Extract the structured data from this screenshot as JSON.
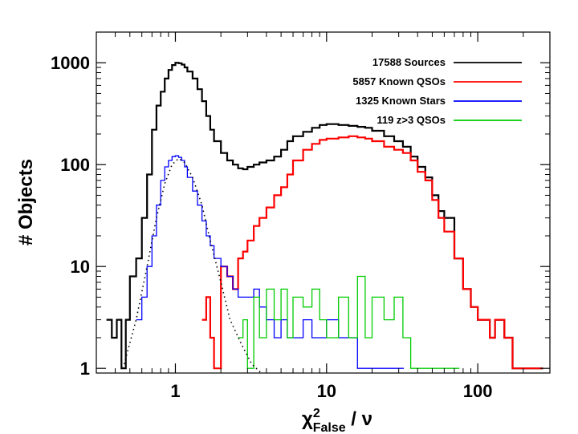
{
  "chart_data": {
    "type": "line",
    "title": "",
    "xlabel": {
      "main": "χ",
      "sup": "2",
      "sub": "False",
      "tail": " / ν"
    },
    "ylabel": "# Objects",
    "xscale": "log",
    "yscale": "log",
    "xlim": [
      0.3,
      300
    ],
    "ylim": [
      0.9,
      2000
    ],
    "xticks": [
      1,
      10,
      100
    ],
    "xtick_labels": [
      "1",
      "10",
      "100"
    ],
    "yticks": [
      1,
      10,
      100,
      1000
    ],
    "ytick_labels": [
      "1",
      "10",
      "100",
      "1000"
    ],
    "grid": false,
    "legend_position": "top-right",
    "series": [
      {
        "name": "17588 Sources",
        "color": "#000000",
        "style": "step",
        "x": [
          0.35,
          0.38,
          0.41,
          0.44,
          0.47,
          0.5,
          0.55,
          0.6,
          0.65,
          0.7,
          0.75,
          0.8,
          0.85,
          0.9,
          0.95,
          1.0,
          1.05,
          1.1,
          1.15,
          1.2,
          1.3,
          1.4,
          1.5,
          1.6,
          1.7,
          1.8,
          2.0,
          2.2,
          2.4,
          2.6,
          2.8,
          3.0,
          3.3,
          3.6,
          4.0,
          4.5,
          5.0,
          5.5,
          6.0,
          7.0,
          8.0,
          9.0,
          10.0,
          12.0,
          14.0,
          16.0,
          18.0,
          20.0,
          24.0,
          28.0,
          32.0,
          36.0,
          40.0,
          45.0,
          50.0,
          55.0,
          60.0,
          70.0,
          80.0,
          90.0,
          100.0,
          110.0,
          120.0,
          130.0,
          150.0,
          170.0,
          200.0,
          250.0
        ],
        "y": [
          3,
          2,
          3,
          1,
          3,
          8,
          12,
          30,
          80,
          220,
          380,
          520,
          700,
          850,
          950,
          1000,
          990,
          960,
          900,
          820,
          700,
          550,
          420,
          300,
          220,
          170,
          130,
          110,
          100,
          92,
          90,
          95,
          100,
          105,
          110,
          120,
          140,
          170,
          190,
          210,
          230,
          245,
          250,
          245,
          240,
          235,
          230,
          215,
          190,
          170,
          150,
          120,
          95,
          75,
          50,
          35,
          30,
          12,
          6,
          4,
          3,
          3,
          2,
          3,
          2,
          1,
          1,
          1
        ]
      },
      {
        "name": "5857 Known QSOs",
        "color": "#ff0000",
        "style": "step",
        "x": [
          1.5,
          1.6,
          1.7,
          1.8,
          2.0,
          2.2,
          2.4,
          2.6,
          2.8,
          3.0,
          3.3,
          3.6,
          4.0,
          4.5,
          5.0,
          5.5,
          6.0,
          7.0,
          8.0,
          9.0,
          10.0,
          12.0,
          14.0,
          16.0,
          18.0,
          20.0,
          24.0,
          28.0,
          32.0,
          36.0,
          40.0,
          45.0,
          50.0,
          55.0,
          60.0,
          70.0,
          80.0,
          90.0,
          100.0,
          110.0,
          120.0,
          130.0,
          150.0,
          170.0,
          200.0,
          250.0
        ],
        "y": [
          3,
          5,
          2,
          1,
          10,
          8,
          6,
          12,
          14,
          18,
          25,
          30,
          38,
          50,
          60,
          80,
          110,
          140,
          160,
          175,
          180,
          185,
          190,
          185,
          180,
          170,
          150,
          140,
          130,
          110,
          85,
          70,
          45,
          30,
          22,
          12,
          6,
          4,
          3,
          3,
          2,
          3,
          2,
          1,
          1,
          1
        ]
      },
      {
        "name": "1325 Known Stars",
        "color": "#0000ff",
        "style": "step",
        "x": [
          0.55,
          0.6,
          0.65,
          0.7,
          0.75,
          0.8,
          0.85,
          0.9,
          0.95,
          1.0,
          1.05,
          1.1,
          1.15,
          1.2,
          1.3,
          1.4,
          1.5,
          1.6,
          1.7,
          1.8,
          2.0,
          2.2,
          2.4,
          2.6,
          2.8,
          3.0,
          3.3,
          3.6,
          4.0,
          4.5,
          5.0,
          5.5,
          6.0,
          7.0,
          8.0,
          9.0,
          10.0,
          12.0,
          14.0,
          16.0,
          20.0,
          25.0,
          30.0
        ],
        "y": [
          3,
          5,
          10,
          20,
          40,
          70,
          95,
          110,
          120,
          122,
          118,
          110,
          95,
          75,
          55,
          40,
          28,
          20,
          16,
          12,
          10,
          8,
          6,
          5,
          5,
          5,
          6,
          4,
          3,
          2,
          3,
          2,
          2,
          3,
          2,
          2,
          3,
          2,
          2,
          1,
          1,
          1,
          1
        ]
      },
      {
        "name": "119 z>3 QSOs",
        "color": "#00cc00",
        "style": "step",
        "x": [
          2.6,
          2.8,
          3.0,
          3.3,
          3.6,
          4.0,
          4.5,
          5.0,
          5.5,
          6.0,
          7.0,
          8.0,
          9.0,
          10.0,
          12.0,
          14.0,
          16.0,
          18.0,
          20.0,
          24.0,
          28.0,
          32.0,
          36.0,
          40.0,
          50.0,
          70.0
        ],
        "y": [
          2,
          3,
          1,
          5,
          2,
          6,
          3,
          6,
          2,
          5,
          4,
          6,
          3,
          2,
          5,
          2,
          8,
          2,
          5,
          3,
          5,
          2,
          1,
          1,
          1,
          1
        ]
      },
      {
        "name": "",
        "color": "#000000",
        "style": "dotted",
        "x": [
          0.45,
          0.55,
          0.65,
          0.75,
          0.85,
          0.95,
          1.05,
          1.15,
          1.3,
          1.5,
          1.7,
          2.0,
          2.3,
          2.7,
          3.2,
          3.7
        ],
        "y": [
          1,
          3,
          10,
          30,
          65,
          100,
          115,
          105,
          75,
          40,
          18,
          7,
          3,
          1.8,
          1.1,
          0.9
        ]
      }
    ]
  }
}
